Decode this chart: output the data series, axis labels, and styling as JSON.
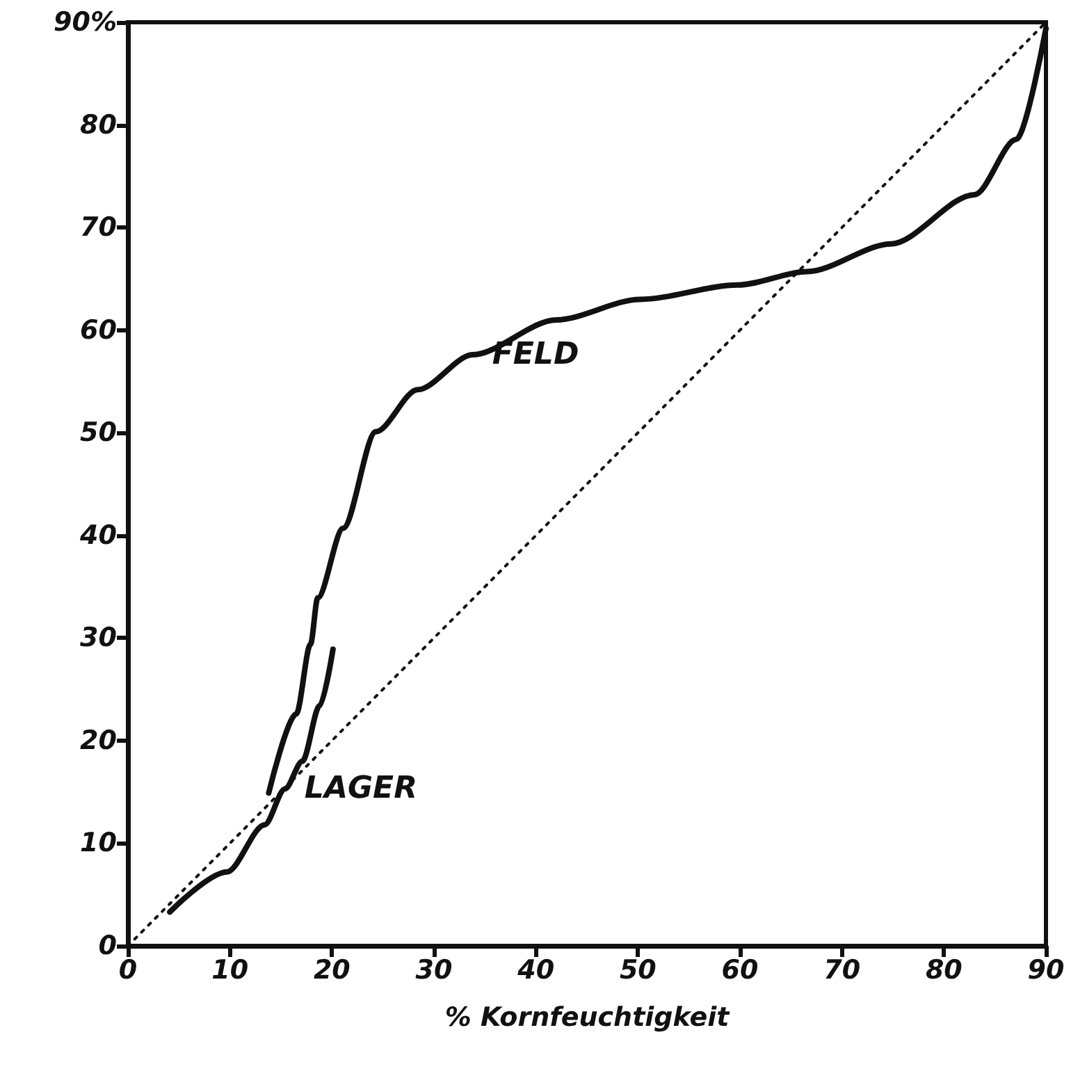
{
  "chart_data": {
    "type": "line",
    "xlabel": "% Kornfeuchtigkeit",
    "xlim": [
      0,
      90
    ],
    "ylim": [
      0,
      90
    ],
    "xticks": [
      0,
      10,
      20,
      30,
      40,
      50,
      60,
      70,
      80,
      90
    ],
    "yticks": [
      0,
      10,
      20,
      30,
      40,
      50,
      60,
      70,
      80,
      {
        "value": 90,
        "label": "90%"
      }
    ],
    "grid": false,
    "legend": false,
    "marker": "none",
    "series": [
      {
        "name": "FELD",
        "color": "#111111",
        "line_style": "solid",
        "x": [
          13.8,
          16.5,
          17.9,
          18.6,
          21.1,
          24.3,
          28.4,
          33.8,
          42,
          50.2,
          59.8,
          66.6,
          74.8,
          83,
          87.1,
          90
        ],
        "values": [
          14.9,
          22.6,
          29.4,
          33.9,
          40.7,
          50.1,
          54.2,
          57.6,
          61,
          63,
          64.4,
          65.7,
          68.4,
          73.2,
          78.6,
          89.4
        ]
      },
      {
        "name": "LAGER",
        "color": "#111111",
        "line_style": "solid",
        "x": [
          4.1,
          9.7,
          13.4,
          15.4,
          17.1,
          18.8,
          20.1
        ],
        "values": [
          3.3,
          7.2,
          11.8,
          15.3,
          18,
          23.4,
          28.9
        ]
      },
      {
        "color": "#111111",
        "line_style": "dotted",
        "x": [
          0,
          90
        ],
        "values": [
          0,
          90
        ]
      }
    ]
  }
}
